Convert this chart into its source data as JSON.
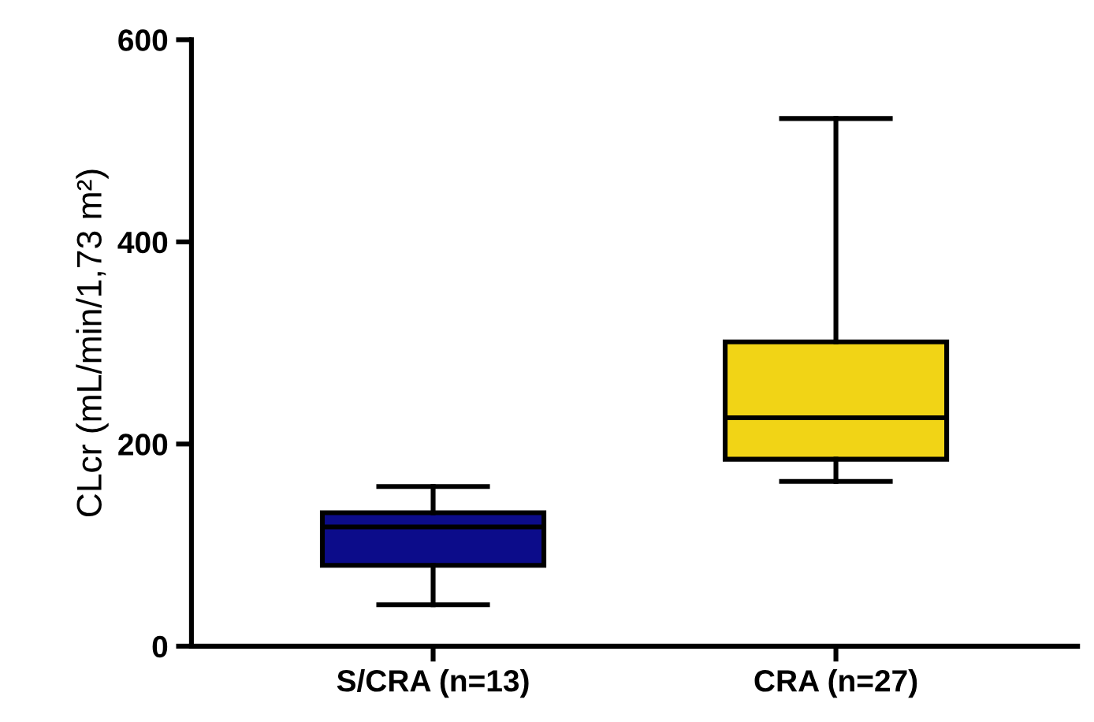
{
  "chart_data": {
    "type": "box",
    "ylabel": "CLcr (mL/min/1,73 m²)",
    "categories": [
      "S/CRA (n=13)",
      "CRA (n=27)"
    ],
    "colors": [
      "#0c0c8a",
      "#f1d416"
    ],
    "boxes": [
      {
        "low": 41,
        "q1": 80,
        "median": 118,
        "q3": 132,
        "high": 158
      },
      {
        "low": 163,
        "q1": 185,
        "median": 226,
        "q3": 301,
        "high": 522
      }
    ],
    "ylim": [
      0,
      600
    ],
    "yticks": [
      0,
      200,
      400,
      600
    ],
    "grid": false
  }
}
